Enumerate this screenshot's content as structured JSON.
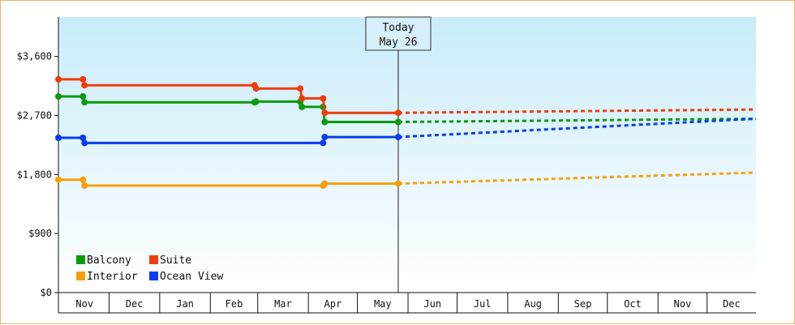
{
  "chart_data": {
    "type": "line",
    "title": "",
    "xlabel": "",
    "ylabel": "",
    "ylim": [
      0,
      4200
    ],
    "y_ticks": [
      "$0",
      "$900",
      "$1,800",
      "$2,700",
      "$3,600"
    ],
    "y_tick_values": [
      0,
      900,
      1800,
      2700,
      3600
    ],
    "x_months": [
      "Nov",
      "Dec",
      "Jan",
      "Feb",
      "Mar",
      "Apr",
      "May",
      "Jun",
      "Jul",
      "Aug",
      "Sep",
      "Oct",
      "Nov",
      "Dec"
    ],
    "today": {
      "line1": "Today",
      "line2": "May 26"
    },
    "grid": false,
    "background": "light blue gradient",
    "legend_position": "bottom-left",
    "series": [
      {
        "name": "Balcony",
        "color": "#0a9a0a",
        "history": [
          [
            "2023-10-31",
            2990
          ],
          [
            "2023-11-15",
            2990
          ],
          [
            "2023-11-16",
            2900
          ],
          [
            "2024-02-28",
            2900
          ],
          [
            "2024-02-29",
            2910
          ],
          [
            "2024-03-27",
            2910
          ],
          [
            "2024-03-28",
            2830
          ],
          [
            "2024-04-10",
            2830
          ],
          [
            "2024-04-11",
            2600
          ],
          [
            "2024-05-26",
            2600
          ]
        ],
        "forecast": [
          [
            "2024-05-26",
            2600
          ],
          [
            "2024-12-31",
            2650
          ]
        ]
      },
      {
        "name": "Suite",
        "color": "#f03c0a",
        "history": [
          [
            "2023-10-31",
            3250
          ],
          [
            "2023-11-15",
            3250
          ],
          [
            "2023-11-16",
            3160
          ],
          [
            "2024-02-28",
            3160
          ],
          [
            "2024-02-29",
            3110
          ],
          [
            "2024-03-27",
            3110
          ],
          [
            "2024-03-28",
            2960
          ],
          [
            "2024-04-10",
            2960
          ],
          [
            "2024-04-11",
            2740
          ],
          [
            "2024-05-26",
            2740
          ]
        ],
        "forecast": [
          [
            "2024-05-26",
            2740
          ],
          [
            "2024-12-31",
            2790
          ]
        ]
      },
      {
        "name": "Interior",
        "color": "#f5a00a",
        "history": [
          [
            "2023-10-31",
            1720
          ],
          [
            "2023-11-15",
            1720
          ],
          [
            "2023-11-16",
            1630
          ],
          [
            "2024-04-10",
            1630
          ],
          [
            "2024-04-11",
            1660
          ],
          [
            "2024-05-26",
            1660
          ]
        ],
        "forecast": [
          [
            "2024-05-26",
            1660
          ],
          [
            "2024-12-31",
            1830
          ]
        ]
      },
      {
        "name": "Ocean View",
        "color": "#0a3cf0",
        "history": [
          [
            "2023-10-31",
            2360
          ],
          [
            "2023-11-15",
            2360
          ],
          [
            "2023-11-16",
            2280
          ],
          [
            "2024-04-10",
            2280
          ],
          [
            "2024-04-11",
            2370
          ],
          [
            "2024-05-26",
            2370
          ]
        ],
        "forecast": [
          [
            "2024-05-26",
            2370
          ],
          [
            "2024-12-31",
            2650
          ]
        ]
      }
    ]
  }
}
